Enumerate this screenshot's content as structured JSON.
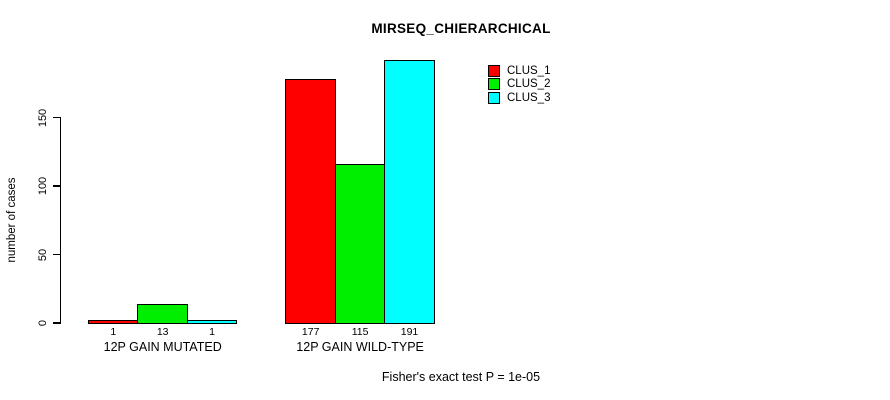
{
  "title": "MIRSEQ_CHIERARCHICAL",
  "chart_data": {
    "type": "bar",
    "grouped": true,
    "categories": [
      "12P GAIN MUTATED",
      "12P GAIN WILD-TYPE"
    ],
    "series": [
      {
        "name": "CLUS_1",
        "color": "#ff0000",
        "values": [
          1,
          177
        ]
      },
      {
        "name": "CLUS_2",
        "color": "#00ee00",
        "values": [
          13,
          115
        ]
      },
      {
        "name": "CLUS_3",
        "color": "#00ffff",
        "values": [
          1,
          191
        ]
      }
    ],
    "ylabel": "number of cases",
    "xlabel": "",
    "yticks": [
      0,
      50,
      100,
      150
    ],
    "ylim": [
      0,
      191
    ],
    "bar_value_labels_shown": true,
    "grid": false,
    "legend": {
      "position": "top-right",
      "entries": [
        "CLUS_1",
        "CLUS_2",
        "CLUS_3"
      ]
    }
  },
  "footer": {
    "caption": "Fisher's exact test P = 1e-05"
  }
}
